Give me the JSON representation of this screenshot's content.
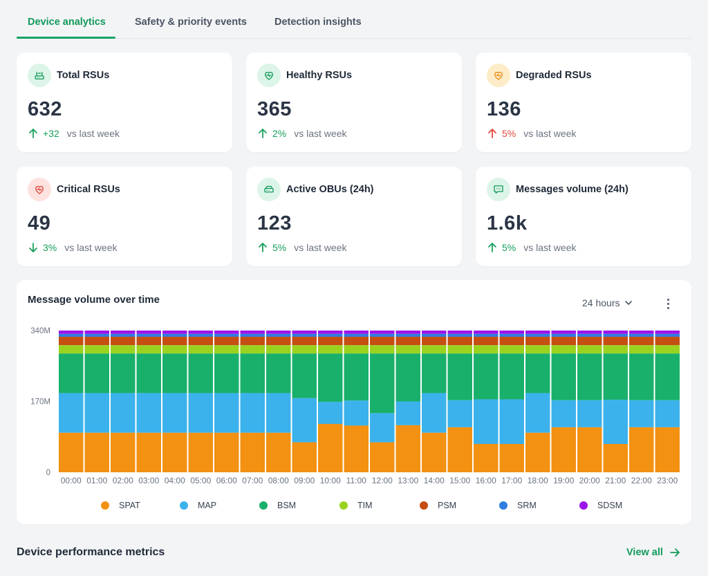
{
  "tabs": [
    {
      "label": "Device analytics",
      "active": true
    },
    {
      "label": "Safety & priority events",
      "active": false
    },
    {
      "label": "Detection insights",
      "active": false
    }
  ],
  "cards": [
    {
      "title": "Total RSUs",
      "value": "632",
      "delta": "+32",
      "delta_label": "vs last week",
      "direction": "up",
      "tone": "green",
      "icon": "router-icon"
    },
    {
      "title": "Healthy RSUs",
      "value": "365",
      "delta": "2%",
      "delta_label": "vs last week",
      "direction": "up",
      "tone": "green",
      "icon": "heart-pulse-icon"
    },
    {
      "title": "Degraded RSUs",
      "value": "136",
      "delta": "5%",
      "delta_label": "vs last week",
      "direction": "up",
      "tone": "red",
      "icon": "heart-pulse-icon"
    },
    {
      "title": "Critical RSUs",
      "value": "49",
      "delta": "3%",
      "delta_label": "vs last week",
      "direction": "down",
      "tone": "green",
      "icon": "heart-pulse-icon"
    },
    {
      "title": "Active OBUs (24h)",
      "value": "123",
      "delta": "5%",
      "delta_label": "vs last week",
      "direction": "up",
      "tone": "green",
      "icon": "obu-device-icon"
    },
    {
      "title": "Messages volume (24h)",
      "value": "1.6k",
      "delta": "5%",
      "delta_label": "vs last week",
      "direction": "up",
      "tone": "green",
      "icon": "message-icon"
    }
  ],
  "panel": {
    "title": "Message volume over time",
    "range": "24 hours"
  },
  "chart_data": {
    "type": "bar",
    "stacked": true,
    "categories": [
      "00:00",
      "01:00",
      "02:00",
      "03:00",
      "04:00",
      "05:00",
      "06:00",
      "07:00",
      "08:00",
      "09:00",
      "10:00",
      "11:00",
      "12:00",
      "13:00",
      "14:00",
      "15:00",
      "16:00",
      "17:00",
      "18:00",
      "19:00",
      "20:00",
      "21:00",
      "22:00",
      "23:00"
    ],
    "y_tick_labels": [
      "0",
      "170M",
      "340M"
    ],
    "y_ticks": [
      0,
      170,
      340
    ],
    "ylim": [
      0,
      340
    ],
    "unit": "M",
    "series": [
      {
        "name": "SPAT",
        "color": "#f39112",
        "values": [
          95,
          95,
          95,
          95,
          95,
          95,
          95,
          95,
          95,
          72,
          116,
          112,
          72,
          113,
          95,
          108,
          68,
          68,
          95,
          108,
          108,
          68,
          108,
          108
        ]
      },
      {
        "name": "MAP",
        "color": "#3bb2ec",
        "values": [
          95,
          95,
          95,
          95,
          95,
          95,
          95,
          95,
          95,
          106,
          53,
          60,
          70,
          57,
          95,
          65,
          107,
          107,
          95,
          65,
          65,
          106,
          65,
          65
        ]
      },
      {
        "name": "BSM",
        "color": "#19b06b",
        "values": [
          95,
          95,
          95,
          95,
          95,
          95,
          95,
          95,
          95,
          107,
          116,
          113,
          143,
          115,
          95,
          112,
          110,
          110,
          95,
          112,
          112,
          111,
          112,
          112
        ]
      },
      {
        "name": "TIM",
        "color": "#9ad31f",
        "values": [
          20,
          20,
          20,
          20,
          20,
          20,
          20,
          20,
          20,
          20,
          20,
          20,
          20,
          20,
          20,
          20,
          20,
          20,
          20,
          20,
          20,
          20,
          20,
          20
        ]
      },
      {
        "name": "PSM",
        "color": "#c54e12",
        "values": [
          20,
          20,
          20,
          20,
          20,
          20,
          20,
          20,
          20,
          20,
          20,
          20,
          20,
          20,
          20,
          20,
          20,
          20,
          20,
          20,
          20,
          20,
          20,
          20
        ]
      },
      {
        "name": "SRM",
        "color": "#2f7de0",
        "values": [
          7,
          7,
          7,
          7,
          7,
          7,
          7,
          7,
          7,
          7,
          7,
          7,
          7,
          7,
          7,
          7,
          7,
          7,
          7,
          7,
          7,
          7,
          7,
          7
        ]
      },
      {
        "name": "SDSM",
        "color": "#9b17e8",
        "values": [
          8,
          8,
          8,
          8,
          8,
          8,
          8,
          8,
          8,
          8,
          8,
          8,
          8,
          8,
          8,
          8,
          8,
          8,
          8,
          8,
          8,
          8,
          8,
          8
        ]
      }
    ]
  },
  "footer": {
    "section_title": "Device performance metrics",
    "view_all": "View all"
  }
}
